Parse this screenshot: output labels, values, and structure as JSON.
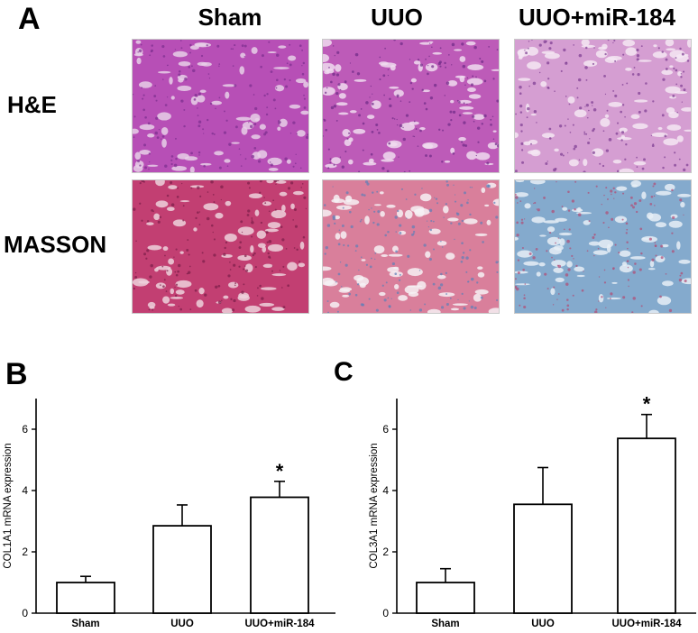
{
  "panel_a": {
    "letter": "A",
    "columns": [
      "Sham",
      "UUO",
      "UUO+miR-184"
    ],
    "rows": [
      "H&E",
      "MASSON"
    ],
    "tiles": [
      {
        "row": 0,
        "col": 0,
        "base": "#b74fb6",
        "dots": "#7a2d8e",
        "lumen": "#e8cfe8"
      },
      {
        "row": 0,
        "col": 1,
        "base": "#bd5bb8",
        "dots": "#6e2a86",
        "lumen": "#f0dcef"
      },
      {
        "row": 0,
        "col": 2,
        "base": "#d59ed2",
        "dots": "#7a3a90",
        "lumen": "#f4e6f3"
      },
      {
        "row": 1,
        "col": 0,
        "base": "#c23f72",
        "dots": "#7a1e48",
        "lumen": "#edd2dc"
      },
      {
        "row": 1,
        "col": 1,
        "base": "#d97f9b",
        "dots": "#5c7fb8",
        "lumen": "#f6f1f4"
      },
      {
        "row": 1,
        "col": 2,
        "base": "#84aacd",
        "dots": "#b24a73",
        "lumen": "#e6eef6"
      }
    ]
  },
  "chart_data": [
    {
      "type": "bar",
      "panel_letter": "B",
      "categories": [
        "Sham",
        "UUO",
        "UUO+miR-184"
      ],
      "values": [
        1.0,
        2.85,
        3.78
      ],
      "errors": [
        0.2,
        0.68,
        0.52
      ],
      "significance": [
        "",
        "",
        "*"
      ],
      "ylabel": "COL1A1 mRNA expression",
      "ylim": [
        0,
        7
      ],
      "yticks": [
        "0",
        "2",
        "4",
        "6"
      ],
      "grid": false
    },
    {
      "type": "bar",
      "panel_letter": "C",
      "categories": [
        "Sham",
        "UUO",
        "UUO+miR-184"
      ],
      "values": [
        1.0,
        3.55,
        5.7
      ],
      "errors": [
        0.45,
        1.2,
        0.78
      ],
      "significance": [
        "",
        "",
        "*"
      ],
      "ylabel": "COL3A1 mRNA expression",
      "ylim": [
        0,
        7
      ],
      "yticks": [
        "0",
        "2",
        "4",
        "6"
      ],
      "grid": false
    }
  ]
}
